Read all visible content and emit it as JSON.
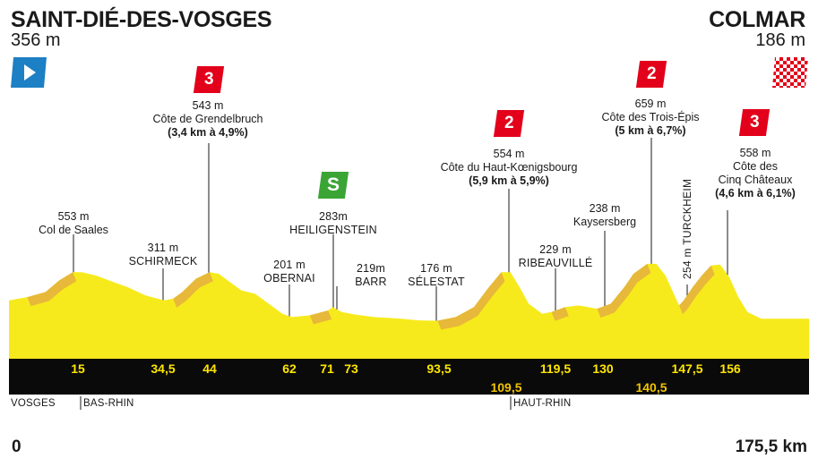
{
  "start": {
    "name": "SAINT-DIÉ-DES-VOSGES",
    "altitude": "356 m"
  },
  "finish": {
    "name": "COLMAR",
    "altitude": "186 m"
  },
  "distance": {
    "start": "0",
    "end": "175,5 km"
  },
  "climbs": [
    {
      "category": "3",
      "altitude": "543 m",
      "name": "Côte de Grendelbruch",
      "detail": "(3,4 km à 4,9%)"
    },
    {
      "category": "2",
      "altitude": "554 m",
      "name": "Côte du Haut-Kœnigsbourg",
      "detail": "(5,9 km à 5,9%)"
    },
    {
      "category": "2",
      "altitude": "659 m",
      "name": "Côte des Trois-Épis",
      "detail": "(5 km à 6,7%)"
    },
    {
      "category": "3",
      "altitude": "558 m",
      "name": "Côte des",
      "name2": "Cinq Châteaux",
      "detail": "(4,6 km à 6,1%)"
    }
  ],
  "sprint": {
    "symbol": "S",
    "altitude": "283m",
    "name": "HEILIGENSTEIN"
  },
  "towns": [
    {
      "altitude": "553 m",
      "name": "Col de Saales",
      "km": "15"
    },
    {
      "altitude": "311 m",
      "name": "SCHIRMECK",
      "km": "34,5"
    },
    {
      "altitude": "201 m",
      "name": "OBERNAI",
      "km": "62"
    },
    {
      "altitude": "219m",
      "name": "BARR",
      "km": "73"
    },
    {
      "altitude": "176 m",
      "name": "SÉLESTAT",
      "km": "93,5"
    },
    {
      "altitude": "229 m",
      "name": "RIBEAUVILLÉ",
      "km": "119,5"
    },
    {
      "altitude": "238 m",
      "name": "Kaysersberg",
      "km": "130"
    },
    {
      "vertical": "254 m TURCKHEIM",
      "km": "147,5"
    }
  ],
  "km_marks": [
    "15",
    "34,5",
    "44",
    "62",
    "71",
    "73",
    "93,5",
    "109,5",
    "119,5",
    "130",
    "140,5",
    "147,5",
    "156"
  ],
  "departments": [
    "VOSGES",
    "BAS-RHIN",
    "HAUT-RHIN"
  ],
  "colors": {
    "profile_yellow": "#f7ea1c",
    "profile_gold": "#e7b83a",
    "category_red": "#e2001a",
    "sprint_green": "#3aa535",
    "start_blue": "#1d7fc4",
    "band_black": "#0a0a0a",
    "km_yellow": "#ffe600"
  },
  "icons": [
    "start-flag-icon",
    "finish-flag-icon",
    "sprint-icon"
  ],
  "profile": {
    "km_total": 175.5,
    "alt_min": 100,
    "points": [
      [
        0,
        300
      ],
      [
        4,
        320
      ],
      [
        8,
        350
      ],
      [
        11,
        420
      ],
      [
        14,
        470
      ],
      [
        16,
        470
      ],
      [
        19,
        450
      ],
      [
        22,
        420
      ],
      [
        26,
        380
      ],
      [
        30,
        330
      ],
      [
        34,
        300
      ],
      [
        36,
        310
      ],
      [
        38,
        350
      ],
      [
        41,
        430
      ],
      [
        44,
        470
      ],
      [
        46,
        460
      ],
      [
        48,
        420
      ],
      [
        51,
        360
      ],
      [
        54,
        340
      ],
      [
        57,
        280
      ],
      [
        60,
        220
      ],
      [
        62,
        200
      ],
      [
        66,
        210
      ],
      [
        70,
        240
      ],
      [
        71,
        260
      ],
      [
        73,
        230
      ],
      [
        76,
        215
      ],
      [
        80,
        200
      ],
      [
        86,
        190
      ],
      [
        90,
        180
      ],
      [
        94,
        178
      ],
      [
        98,
        200
      ],
      [
        102,
        260
      ],
      [
        105,
        370
      ],
      [
        108,
        470
      ],
      [
        110,
        470
      ],
      [
        112,
        380
      ],
      [
        114,
        280
      ],
      [
        117,
        220
      ],
      [
        119,
        230
      ],
      [
        122,
        260
      ],
      [
        125,
        270
      ],
      [
        129,
        250
      ],
      [
        132,
        280
      ],
      [
        135,
        380
      ],
      [
        137,
        460
      ],
      [
        140,
        520
      ],
      [
        142,
        520
      ],
      [
        144,
        450
      ],
      [
        146,
        330
      ],
      [
        147,
        270
      ],
      [
        148,
        300
      ],
      [
        150,
        380
      ],
      [
        152,
        450
      ],
      [
        154,
        510
      ],
      [
        156,
        515
      ],
      [
        158,
        440
      ],
      [
        160,
        320
      ],
      [
        162,
        230
      ],
      [
        165,
        190
      ],
      [
        175.5,
        190
      ]
    ]
  }
}
